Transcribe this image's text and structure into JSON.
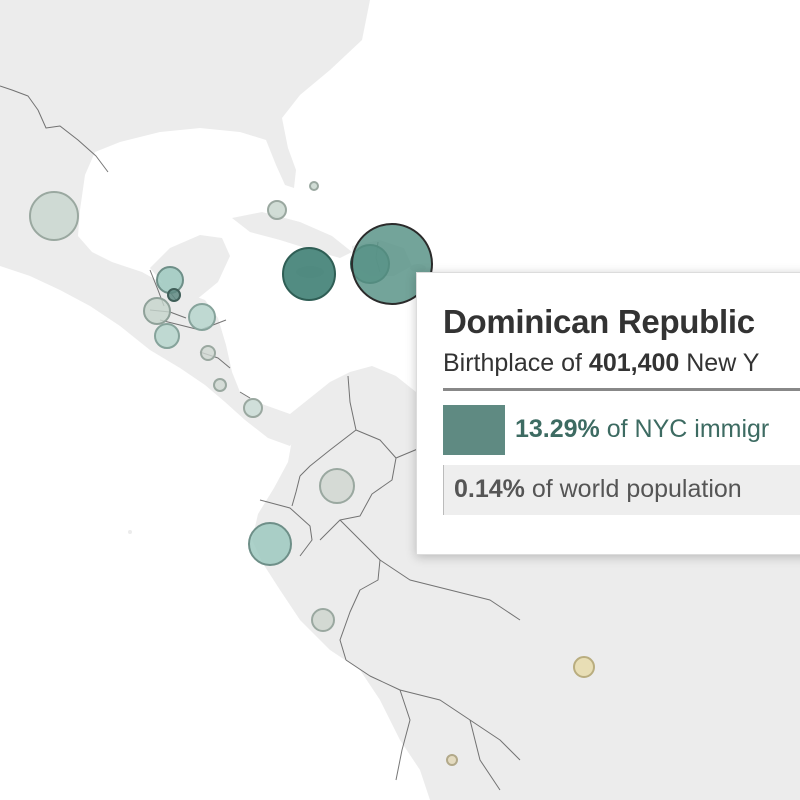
{
  "tooltip": {
    "country": "Dominican Republic",
    "subtitle_prefix": "Birthplace of ",
    "subtitle_value": "401,400",
    "subtitle_suffix": " New Y",
    "nyc_share_value": "13.29%",
    "nyc_share_label": " of NYC immigr",
    "nyc_share_fraction": 0.1329,
    "world_share_value": "0.14%",
    "world_share_label": " of world population"
  },
  "colors": {
    "accent": "#5f8a82",
    "land": "#ececec",
    "border": "#4a4a4a",
    "highlight_bubble": "#3f7f74",
    "mid_bubble": "#9dc9c0",
    "light_bubble": "#c5d4cc",
    "tan_bubble": "#e8dcab"
  },
  "map_layer": {
    "bubble_color_scale": "teal-to-tan",
    "highlighted_country": "Dominican Republic"
  }
}
